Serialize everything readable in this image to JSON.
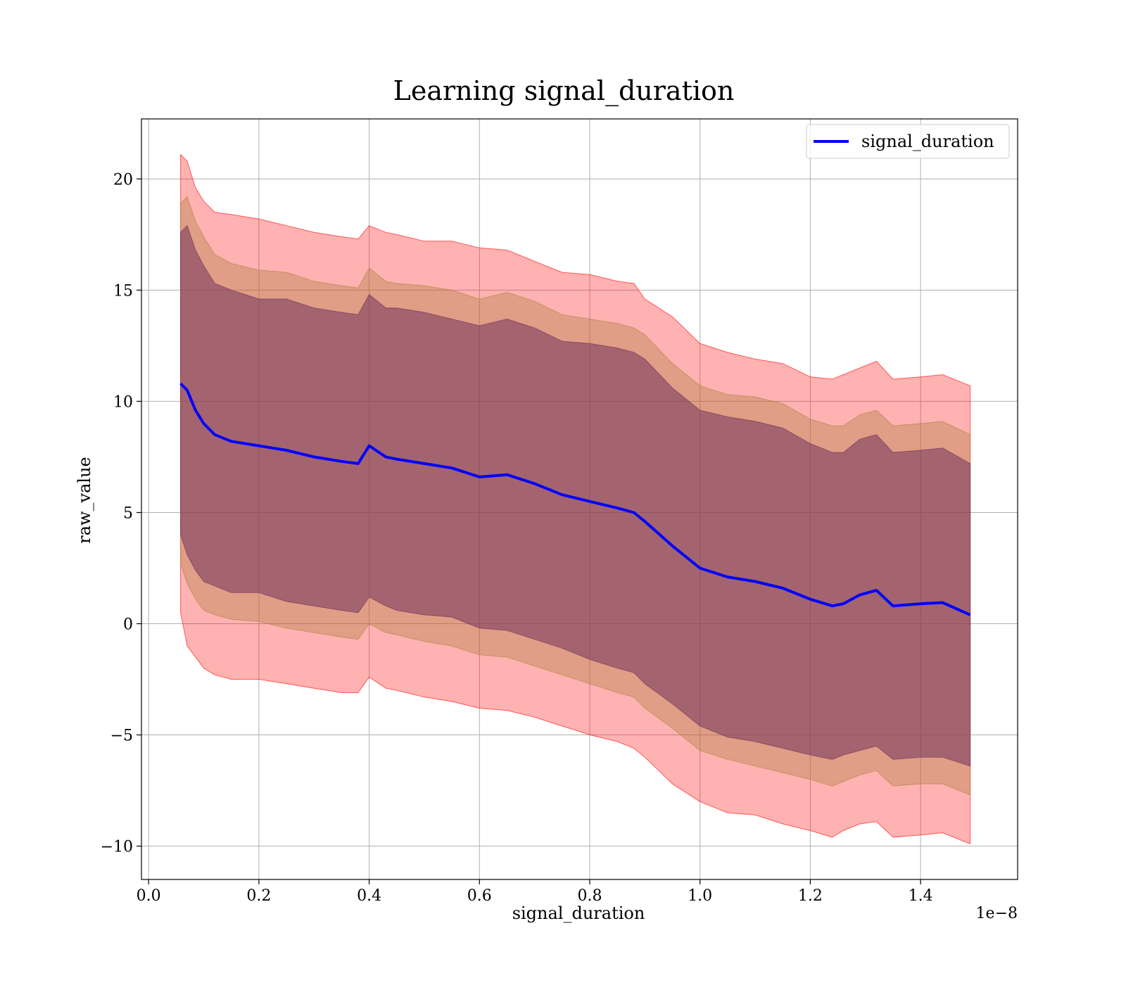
{
  "chart_data": {
    "type": "line",
    "title": "Learning signal_duration",
    "xlabel": "signal_duration",
    "ylabel": "raw_value",
    "x_scale_label": "1e−8",
    "xlim": [
      -0.013,
      1.576
    ],
    "ylim": [
      -11.5,
      22.7
    ],
    "x_ticks": [
      0.0,
      0.2,
      0.4,
      0.6,
      0.8,
      1.0,
      1.2,
      1.4
    ],
    "x_tick_labels": [
      "0.0",
      "0.2",
      "0.4",
      "0.6",
      "0.8",
      "1.0",
      "1.2",
      "1.4"
    ],
    "y_ticks": [
      -10,
      -5,
      0,
      5,
      10,
      15,
      20
    ],
    "y_tick_labels": [
      "−10",
      "−5",
      "0",
      "5",
      "10",
      "15",
      "20"
    ],
    "grid": true,
    "legend_position": "top-right",
    "series": [
      {
        "name": "signal_duration",
        "color": "#0000ff",
        "x": [
          0.058,
          0.07,
          0.085,
          0.1,
          0.12,
          0.15,
          0.2,
          0.25,
          0.3,
          0.35,
          0.38,
          0.4,
          0.43,
          0.45,
          0.5,
          0.55,
          0.6,
          0.65,
          0.7,
          0.75,
          0.8,
          0.85,
          0.88,
          0.9,
          0.95,
          1.0,
          1.05,
          1.1,
          1.15,
          1.2,
          1.24,
          1.26,
          1.29,
          1.32,
          1.35,
          1.4,
          1.44,
          1.49
        ],
        "values": [
          10.8,
          10.5,
          9.6,
          9.0,
          8.5,
          8.2,
          8.0,
          7.8,
          7.5,
          7.3,
          7.2,
          8.0,
          7.5,
          7.4,
          7.2,
          7.0,
          6.6,
          6.7,
          6.3,
          5.8,
          5.5,
          5.2,
          5.0,
          4.6,
          3.5,
          2.5,
          2.1,
          1.9,
          1.6,
          1.1,
          0.8,
          0.9,
          1.3,
          1.5,
          0.8,
          0.9,
          0.95,
          0.4
        ]
      }
    ],
    "bands": [
      {
        "role": "band-3sigma",
        "color": "#ff0000",
        "opacity": 0.3,
        "lower": [
          0.5,
          -1.0,
          -1.5,
          -2.0,
          -2.3,
          -2.5,
          -2.5,
          -2.7,
          -2.9,
          -3.1,
          -3.1,
          -2.4,
          -2.9,
          -3.0,
          -3.3,
          -3.5,
          -3.8,
          -3.9,
          -4.2,
          -4.6,
          -5.0,
          -5.3,
          -5.6,
          -6.0,
          -7.2,
          -8.0,
          -8.5,
          -8.6,
          -9.0,
          -9.3,
          -9.6,
          -9.3,
          -9.0,
          -8.9,
          -9.6,
          -9.5,
          -9.4,
          -9.9
        ],
        "upper": [
          21.1,
          20.8,
          19.6,
          19.0,
          18.5,
          18.4,
          18.2,
          17.9,
          17.6,
          17.4,
          17.3,
          17.9,
          17.6,
          17.5,
          17.2,
          17.2,
          16.9,
          16.8,
          16.3,
          15.8,
          15.7,
          15.4,
          15.3,
          14.6,
          13.8,
          12.6,
          12.2,
          11.9,
          11.7,
          11.1,
          11.0,
          11.2,
          11.5,
          11.8,
          11.0,
          11.1,
          11.2,
          10.7
        ]
      },
      {
        "role": "band-2sigma",
        "color": "#b08040",
        "opacity": 0.4,
        "lower": [
          2.7,
          1.8,
          1.1,
          0.6,
          0.4,
          0.2,
          0.1,
          -0.2,
          -0.4,
          -0.6,
          -0.7,
          0.0,
          -0.4,
          -0.5,
          -0.8,
          -1.0,
          -1.4,
          -1.5,
          -1.9,
          -2.3,
          -2.7,
          -3.1,
          -3.3,
          -3.8,
          -4.7,
          -5.7,
          -6.1,
          -6.4,
          -6.7,
          -7.0,
          -7.3,
          -7.1,
          -6.8,
          -6.6,
          -7.3,
          -7.2,
          -7.2,
          -7.7
        ]
      },
      {
        "role": "band-1sigma",
        "color": "#6a2a5a",
        "opacity": 0.5,
        "lower": [
          4.0,
          3.1,
          2.4,
          1.9,
          1.7,
          1.4,
          1.4,
          1.0,
          0.8,
          0.6,
          0.5,
          1.2,
          0.8,
          0.6,
          0.4,
          0.3,
          -0.2,
          -0.3,
          -0.7,
          -1.1,
          -1.6,
          -2.0,
          -2.2,
          -2.7,
          -3.6,
          -4.6,
          -5.1,
          -5.3,
          -5.6,
          -5.9,
          -6.1,
          -5.9,
          -5.7,
          -5.5,
          -6.1,
          -6.0,
          -6.0,
          -6.4
        ]
      }
    ]
  },
  "legend": {
    "label": "signal_duration"
  }
}
